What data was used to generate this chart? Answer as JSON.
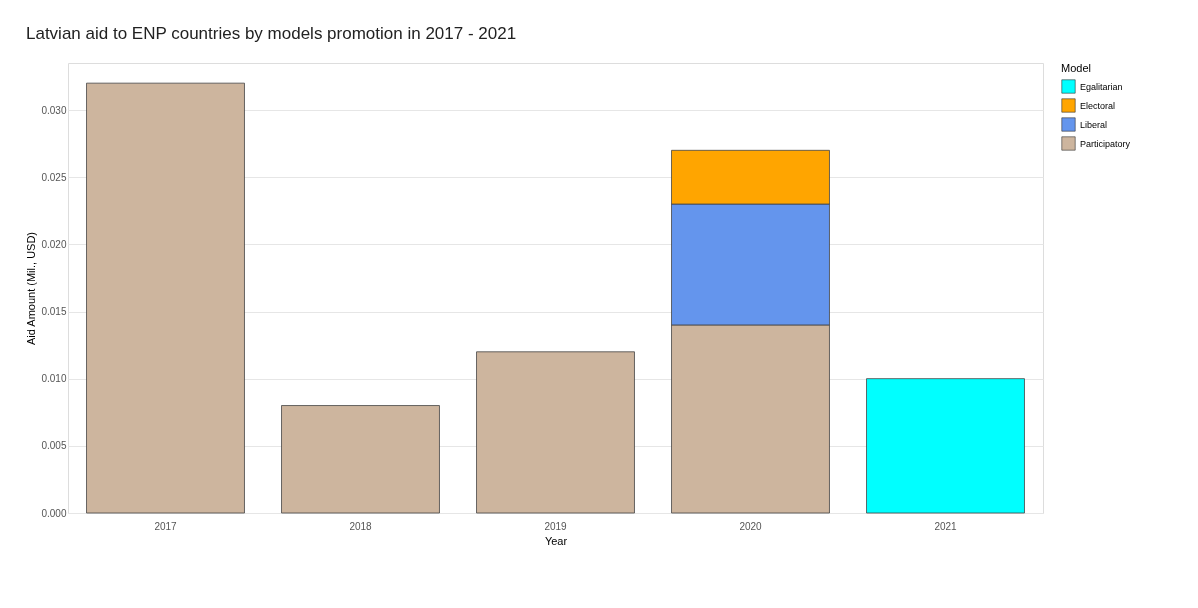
{
  "chart_data": {
    "type": "bar",
    "title": "Latvian aid to ENP countries by models promotion in 2017 - 2021",
    "xlabel": "Year",
    "ylabel": "Aid Amount (Mil., USD)",
    "legend_title": "Model",
    "categories": [
      "2017",
      "2018",
      "2019",
      "2020",
      "2021"
    ],
    "series": [
      {
        "name": "Participatory",
        "color": "#cdb59e",
        "values": [
          0.032,
          0.008,
          0.012,
          0.014,
          null
        ]
      },
      {
        "name": "Liberal",
        "color": "#6495ed",
        "values": [
          null,
          null,
          null,
          0.009,
          null
        ]
      },
      {
        "name": "Electoral",
        "color": "#ffa500",
        "values": [
          null,
          null,
          null,
          0.004,
          null
        ]
      },
      {
        "name": "Egalitarian",
        "color": "#00ffff",
        "values": [
          null,
          null,
          null,
          null,
          0.01
        ]
      }
    ],
    "stacked": true,
    "ylim": [
      0,
      0.0335
    ],
    "yticks": [
      {
        "value": 0,
        "label": "0.000"
      },
      {
        "value": 0.005,
        "label": "0.005"
      },
      {
        "value": 0.01,
        "label": "0.010"
      },
      {
        "value": 0.015,
        "label": "0.015"
      },
      {
        "value": 0.02,
        "label": "0.020"
      },
      {
        "value": 0.025,
        "label": "0.025"
      },
      {
        "value": 0.03,
        "label": "0.030"
      }
    ],
    "grid": "y",
    "legend": "right"
  }
}
